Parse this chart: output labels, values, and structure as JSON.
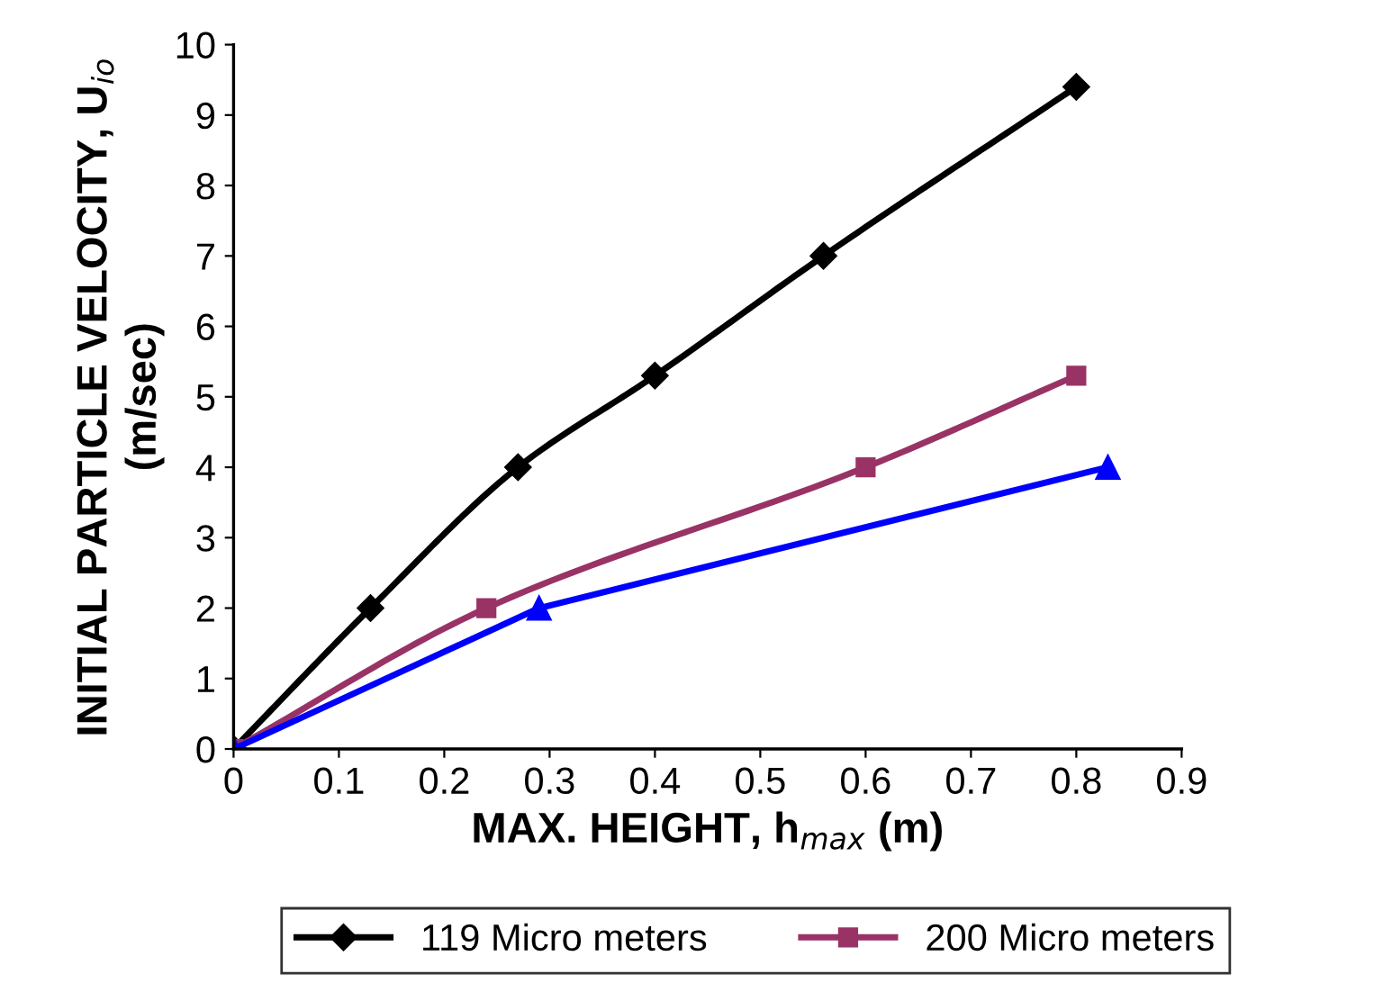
{
  "chart_data": {
    "type": "line",
    "xlabel": "MAX. HEIGHT, h$_{max}$ (m)",
    "ylabel": "INITIAL PARTICLE VELOCITY, U$_{io}$\n(m/sec)",
    "xlim": [
      0,
      0.9
    ],
    "xticks": [
      0,
      0.1,
      0.2,
      0.3,
      0.4,
      0.5,
      0.6,
      0.7,
      0.8,
      0.9
    ],
    "ylim": [
      0,
      10
    ],
    "yticks": [
      0,
      1,
      2,
      3,
      4,
      5,
      6,
      7,
      8,
      9,
      10
    ],
    "grid": false,
    "legend": "bottom",
    "line_style": "solid",
    "series": [
      {
        "name": "119 Micro meters",
        "color": "#000000",
        "marker": "diamond",
        "x": [
          0,
          0.13,
          0.27,
          0.4,
          0.56,
          0.8
        ],
        "values": [
          0,
          2,
          4,
          5.3,
          7,
          9.4
        ]
      },
      {
        "name": "200 Micro meters",
        "color": "#993366",
        "marker": "square",
        "x": [
          0,
          0.24,
          0.6,
          0.8
        ],
        "values": [
          0,
          2,
          4,
          5.3
        ]
      },
      {
        "color": "#0000ff",
        "marker": "triangle",
        "x": [
          0,
          0.29,
          0.83
        ],
        "values": [
          0,
          2,
          4
        ]
      }
    ]
  }
}
